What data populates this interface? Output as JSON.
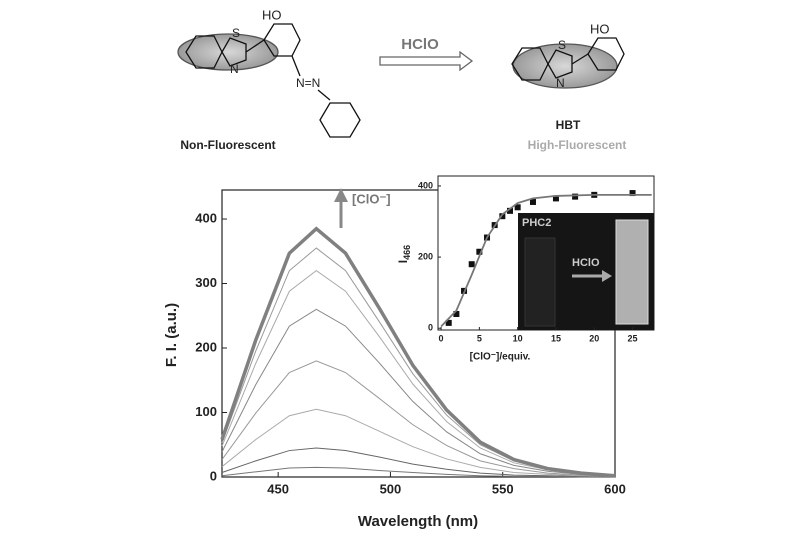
{
  "scheme": {
    "left_ho": "HO",
    "left_s": "S",
    "left_n": "N",
    "azo": "N=N",
    "reagent": "HClO",
    "left_label": "Non-Fluorescent",
    "right_ho": "HO",
    "right_s": "S",
    "right_n": "N",
    "right_name": "HBT",
    "right_label": "High-Fluorescent"
  },
  "chart_data": [
    {
      "type": "line",
      "x_label": "Wavelength (nm)",
      "y_label": "F. I. (a.u.)",
      "annotation": "[ClO⁻]",
      "x": [
        425,
        440,
        455,
        467,
        480,
        495,
        510,
        525,
        540,
        555,
        570,
        585,
        600
      ],
      "series": [
        {
          "color": "#777777",
          "values": [
            2,
            8,
            14,
            15,
            14,
            10,
            7,
            4,
            2,
            1,
            1,
            0,
            0
          ]
        },
        {
          "color": "#666666",
          "values": [
            7,
            25,
            41,
            45,
            41,
            31,
            20,
            12,
            6,
            3,
            2,
            1,
            0
          ]
        },
        {
          "color": "#aaaaaa",
          "values": [
            16,
            58,
            95,
            105,
            95,
            71,
            47,
            28,
            15,
            7,
            4,
            2,
            1
          ]
        },
        {
          "color": "#999999",
          "values": [
            27,
            99,
            162,
            180,
            162,
            122,
            81,
            49,
            25,
            13,
            6,
            3,
            1
          ]
        },
        {
          "color": "#888888",
          "values": [
            39,
            143,
            234,
            260,
            234,
            177,
            117,
            70,
            36,
            18,
            9,
            4,
            1
          ]
        },
        {
          "color": "#aaaaaa",
          "values": [
            48,
            176,
            288,
            320,
            288,
            218,
            144,
            86,
            45,
            22,
            11,
            5,
            2
          ]
        },
        {
          "color": "#999999",
          "values": [
            53,
            195,
            320,
            355,
            320,
            241,
            160,
            96,
            50,
            25,
            12,
            5,
            2
          ]
        },
        {
          "color": "#808080",
          "linewidth": 3.5,
          "values": [
            58,
            212,
            347,
            385,
            347,
            262,
            173,
            104,
            54,
            27,
            13,
            6,
            2
          ]
        }
      ],
      "xlim": [
        425,
        600
      ],
      "xticks": [
        450,
        500,
        550,
        600
      ],
      "ylim": [
        0,
        445
      ],
      "yticks": [
        0,
        100,
        200,
        300,
        400
      ]
    },
    {
      "type": "scatter",
      "x_label": "[ClO⁻]/equiv.",
      "y_label": "I",
      "y_label_sub": "466",
      "photo_label": "PHC2",
      "photo_arrow_label": "HClO",
      "series": [
        {
          "kind": "points",
          "color": "#111111",
          "x": [
            1,
            2,
            3,
            4,
            5,
            6,
            7,
            8,
            9,
            10,
            12,
            15,
            17.5,
            20,
            25
          ],
          "values": [
            15,
            40,
            105,
            180,
            215,
            255,
            290,
            315,
            330,
            340,
            355,
            365,
            370,
            375,
            380
          ]
        },
        {
          "kind": "line",
          "color": "#777777",
          "x": [
            0,
            2,
            4,
            6,
            8,
            10,
            12,
            15,
            20,
            27.5
          ],
          "values": [
            5,
            50,
            150,
            255,
            320,
            352,
            365,
            372,
            375,
            375
          ]
        }
      ],
      "xlim": [
        -0.4,
        27.8
      ],
      "xticks": [
        0,
        5,
        10,
        15,
        20,
        25
      ],
      "ylim": [
        -5,
        428
      ],
      "yticks": [
        0,
        200,
        400
      ]
    }
  ]
}
